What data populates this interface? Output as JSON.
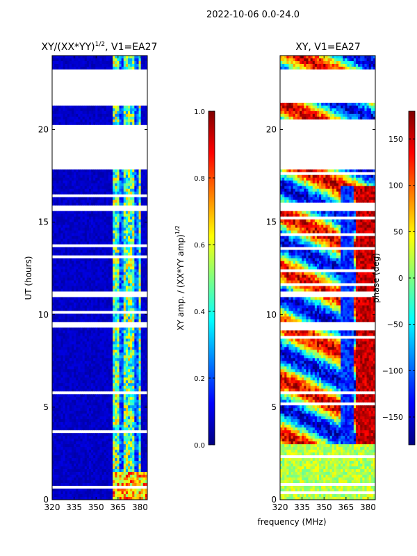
{
  "suptitle": "2022-10-06 0.0-24.0",
  "colors": {
    "missing": "#ffffff",
    "jet": [
      "#00007f",
      "#0000ff",
      "#007fff",
      "#00ffff",
      "#7fff7f",
      "#ffff00",
      "#ff7f00",
      "#ff0000",
      "#7f0000"
    ]
  },
  "chart_data": [
    {
      "type": "heatmap",
      "title": "XY/(XX*YY)^1/2, V1=EA27",
      "title_main": "XY/(XX*YY)",
      "title_sup": "1/2",
      "title_rest": ", V1=EA27",
      "xlabel": "",
      "ylabel": "UT (hours)",
      "xlim": [
        320,
        385
      ],
      "ylim": [
        0,
        24
      ],
      "xticks": [
        "320",
        "335",
        "350",
        "365",
        "380"
      ],
      "xtick_values": [
        320,
        335,
        350,
        365,
        380
      ],
      "yticks": [
        "0",
        "5",
        "10",
        "15",
        "20"
      ],
      "ytick_values": [
        0,
        5,
        10,
        15,
        20
      ],
      "colorbar": {
        "label": "XY amp. / (XX*YY amp)^1/2",
        "label_main": "XY amp. / (XX*YY amp)",
        "label_sup": "1/2",
        "range": [
          0.0,
          1.0
        ],
        "ticks": [
          "0.0",
          "0.2",
          "0.4",
          "0.6",
          "0.8",
          "1.0"
        ],
        "tick_values": [
          0.0,
          0.2,
          0.4,
          0.6,
          0.8,
          1.0
        ]
      },
      "missing_ut_ranges": [
        [
          17.9,
          20.3
        ],
        [
          21.5,
          23.2
        ],
        [
          15.6,
          15.9
        ],
        [
          11.0,
          11.3
        ],
        [
          9.3,
          9.6
        ]
      ],
      "data_description": "Mostly low normalized amplitude (~0.05) except strong vertical bands near 362-380 MHz (~0.4-0.7)."
    },
    {
      "type": "heatmap",
      "title": "XY, V1=EA27",
      "xlabel": "frequency (MHz)",
      "ylabel": "",
      "xlim": [
        320,
        385
      ],
      "ylim": [
        0,
        24
      ],
      "xticks": [
        "320",
        "335",
        "350",
        "365",
        "380"
      ],
      "xtick_values": [
        320,
        335,
        350,
        365,
        380
      ],
      "yticks": [
        "0",
        "5",
        "10",
        "15",
        "20"
      ],
      "ytick_values": [
        0,
        5,
        10,
        15,
        20
      ],
      "colorbar": {
        "label": "phase (deg)",
        "range": [
          -180,
          180
        ],
        "ticks": [
          "−150",
          "−100",
          "−50",
          "0",
          "50",
          "100",
          "150"
        ],
        "tick_values": [
          -150,
          -100,
          -50,
          0,
          50,
          100,
          150
        ]
      },
      "missing_ut_ranges": [
        [
          17.9,
          20.3
        ],
        [
          21.5,
          23.2
        ],
        [
          15.6,
          15.9
        ],
        [
          11.0,
          11.3
        ],
        [
          9.3,
          9.6
        ]
      ],
      "data_description": "Phase varies widely across -180 to 180 deg with red/blue banded structure; green-yellow below 3 h."
    }
  ]
}
